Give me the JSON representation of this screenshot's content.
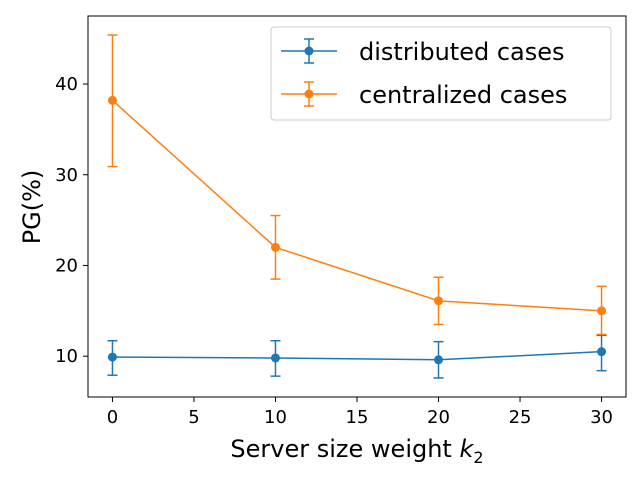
{
  "chart_data": {
    "type": "line",
    "title": "",
    "xlabel": "Server size weight",
    "xlabel_subscript": "k",
    "xlabel_subscript_index": "2",
    "ylabel": "PG(%)",
    "xlim": [
      -1.5,
      31.5
    ],
    "ylim": [
      5.5,
      47.5
    ],
    "xticks": [
      0,
      5,
      10,
      15,
      20,
      25,
      30
    ],
    "yticks": [
      10,
      20,
      30,
      40
    ],
    "grid": false,
    "legend_position": "top-right",
    "x": [
      0,
      10,
      20,
      30
    ],
    "series": [
      {
        "name": "distributed cases",
        "color": "#1f77b4",
        "values": [
          9.9,
          9.8,
          9.6,
          10.5
        ],
        "err_low": [
          7.9,
          7.8,
          7.6,
          8.4
        ],
        "err_high": [
          11.7,
          11.7,
          11.6,
          12.3
        ]
      },
      {
        "name": "centralized cases",
        "color": "#ff7f0e",
        "values": [
          38.2,
          22.0,
          16.1,
          15.0
        ],
        "err_low": [
          30.9,
          18.5,
          13.5,
          12.4
        ],
        "err_high": [
          45.4,
          25.5,
          18.7,
          17.7
        ]
      }
    ]
  }
}
